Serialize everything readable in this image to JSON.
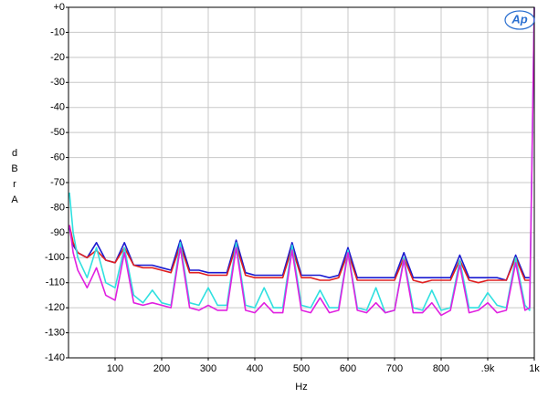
{
  "chart_data": {
    "type": "line",
    "logo": "Ap",
    "x_label": "Hz",
    "y_label": "dBr A",
    "xlim": [
      0,
      1000
    ],
    "ylim": [
      -140,
      0
    ],
    "xticks": [
      100,
      200,
      300,
      400,
      500,
      600,
      700,
      800,
      {
        "value": 900,
        "label": ".9k"
      },
      {
        "value": 1000,
        "label": "1k"
      }
    ],
    "yticks": [
      {
        "value": 0,
        "label": "+0"
      },
      -10,
      -20,
      -30,
      -40,
      -50,
      -60,
      -70,
      -80,
      -90,
      -100,
      -110,
      -120,
      -130,
      -140
    ],
    "grid": true,
    "x": [
      2,
      10,
      20,
      40,
      60,
      80,
      100,
      120,
      140,
      160,
      180,
      200,
      220,
      240,
      260,
      280,
      300,
      320,
      340,
      360,
      380,
      400,
      420,
      440,
      460,
      480,
      500,
      520,
      540,
      560,
      580,
      600,
      620,
      640,
      660,
      680,
      700,
      720,
      740,
      760,
      780,
      800,
      820,
      840,
      860,
      880,
      900,
      920,
      940,
      960,
      980,
      990,
      995,
      1000
    ],
    "series": [
      {
        "name": "blue",
        "color": "#1a1ad0",
        "values": [
          -88,
          -95,
          -98,
          -100,
          -94,
          -101,
          -102,
          -94,
          -103,
          -103,
          -103,
          -104,
          -105,
          -93,
          -105,
          -105,
          -106,
          -106,
          -106,
          -93,
          -106,
          -107,
          -107,
          -107,
          -107,
          -94,
          -107,
          -107,
          -107,
          -108,
          -107,
          -96,
          -108,
          -108,
          -108,
          -108,
          -108,
          -98,
          -108,
          -108,
          -108,
          -108,
          -108,
          -99,
          -108,
          -108,
          -108,
          -108,
          -109,
          -99,
          -108,
          -108,
          null,
          null
        ]
      },
      {
        "name": "red",
        "color": "#e02020",
        "values": [
          -87,
          -94,
          -98,
          -100,
          -97,
          -101,
          -102,
          -96,
          -103,
          -104,
          -104,
          -105,
          -106,
          -95,
          -106,
          -106,
          -107,
          -107,
          -107,
          -95,
          -107,
          -108,
          -108,
          -108,
          -108,
          -96,
          -108,
          -108,
          -109,
          -109,
          -108,
          -98,
          -109,
          -109,
          -109,
          -109,
          -109,
          -100,
          -109,
          -110,
          -109,
          -109,
          -109,
          -101,
          -109,
          -110,
          -109,
          -109,
          -109,
          -100,
          -109,
          -109,
          null,
          null
        ]
      },
      {
        "name": "cyan",
        "color": "#30e0e0",
        "values": [
          -74,
          -90,
          -100,
          -108,
          -96,
          -110,
          -112,
          -96,
          -115,
          -118,
          -113,
          -118,
          -119,
          -94,
          -118,
          -119,
          -112,
          -119,
          -119,
          -94,
          -119,
          -120,
          -112,
          -120,
          -120,
          -95,
          -119,
          -120,
          -113,
          -120,
          -120,
          -97,
          -120,
          -121,
          -112,
          -122,
          -121,
          -100,
          -120,
          -121,
          -113,
          -121,
          -120,
          -101,
          -120,
          -120,
          -114,
          -119,
          -120,
          -100,
          -119,
          -121,
          -60,
          0
        ]
      },
      {
        "name": "magenta",
        "color": "#e020e0",
        "values": [
          -87,
          -98,
          -105,
          -112,
          -104,
          -115,
          -117,
          -98,
          -118,
          -119,
          -118,
          -119,
          -120,
          -96,
          -120,
          -121,
          -119,
          -121,
          -121,
          -96,
          -121,
          -122,
          -118,
          -122,
          -122,
          -97,
          -121,
          -122,
          -116,
          -122,
          -121,
          -98,
          -121,
          -122,
          -118,
          -122,
          -121,
          -101,
          -122,
          -122,
          -118,
          -123,
          -121,
          -103,
          -122,
          -121,
          -118,
          -122,
          -121,
          -102,
          -121,
          -120,
          -60,
          0
        ]
      }
    ]
  }
}
